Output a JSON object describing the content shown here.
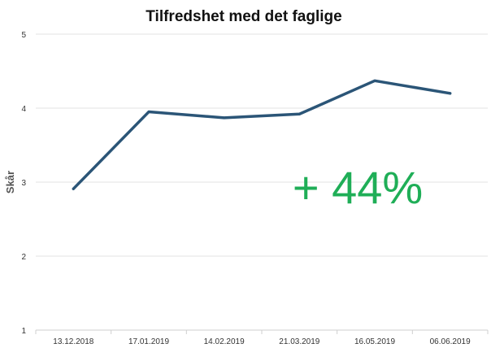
{
  "chart_data": {
    "type": "line",
    "title": "Tilfredshet med det faglige",
    "ylabel": "Skår",
    "xlabel": "",
    "ylim": [
      1,
      5
    ],
    "yticks": [
      "1",
      "2",
      "3",
      "4",
      "5"
    ],
    "categories": [
      "13.12.2018",
      "17.01.2019",
      "14.02.2019",
      "21.03.2019",
      "16.05.2019",
      "06.06.2019"
    ],
    "series": [
      {
        "values": [
          2.91,
          3.95,
          3.87,
          3.92,
          4.37,
          4.2
        ]
      }
    ],
    "annotation": "+ 44%",
    "grid": true,
    "legend": "none"
  },
  "colors": {
    "line": "#2b5577",
    "annotation": "#1fae57",
    "grid": "#e3e3e3"
  }
}
